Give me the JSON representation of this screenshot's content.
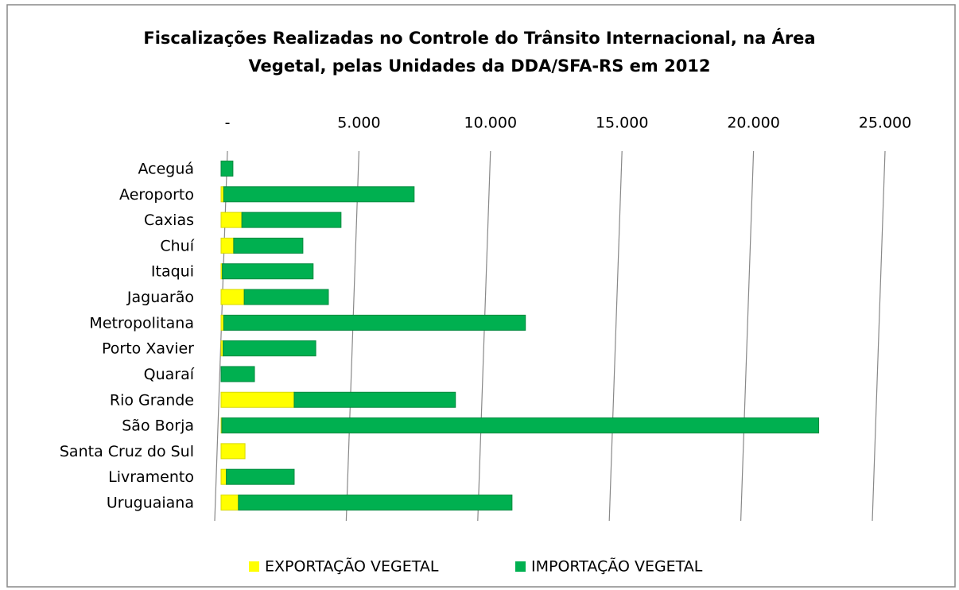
{
  "chart_data": {
    "type": "stacked_barh",
    "title": [
      "Fiscalizações Realizadas no Controle do Trânsito Internacional, na Área",
      "Vegetal, pelas Unidades da DDA/SFA-RS em 2012"
    ],
    "categories": [
      "Aceguá",
      "Aeroporto",
      "Caxias",
      "Chuí",
      "Itaqui",
      "Jaguarão",
      "Metropolitana",
      "Porto Xavier",
      "Quaraí",
      "Rio Grande",
      "São Borja",
      "Santa Cruz do Sul",
      "Livramento",
      "Uruguaiana"
    ],
    "series": [
      {
        "name": "EXPORTAÇÃO VEGETAL",
        "color": "#ffff00",
        "values": [
          0,
          100,
          790,
          480,
          50,
          880,
          100,
          80,
          0,
          2780,
          30,
          910,
          200,
          660
        ]
      },
      {
        "name": "IMPORTAÇÃO VEGETAL",
        "color": "#00b050",
        "values": [
          450,
          7240,
          3770,
          2630,
          3450,
          3200,
          11470,
          3520,
          1270,
          6130,
          22690,
          0,
          2580,
          10400
        ]
      }
    ],
    "xlim": [
      0,
      25000
    ],
    "xticks": [
      {
        "value": 0,
        "label": "-"
      },
      {
        "value": 5000,
        "label": "5.000"
      },
      {
        "value": 10000,
        "label": "10.000"
      },
      {
        "value": 15000,
        "label": "15.000"
      },
      {
        "value": 20000,
        "label": "20.000"
      },
      {
        "value": 25000,
        "label": "25.000"
      }
    ],
    "grid": true
  }
}
